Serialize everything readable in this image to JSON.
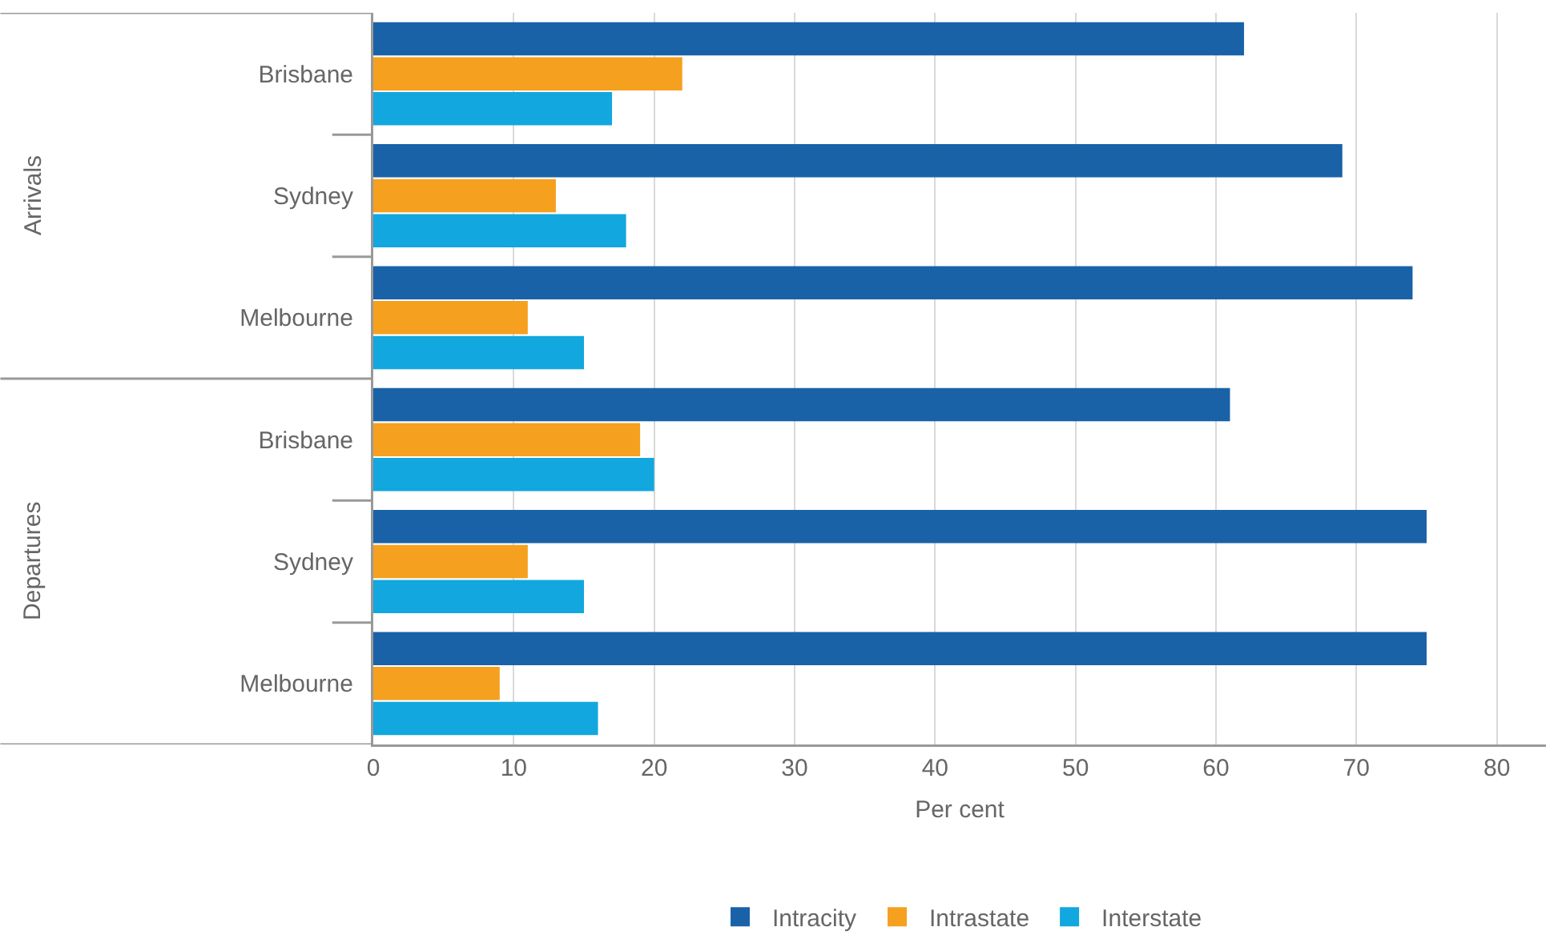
{
  "chart_data": {
    "type": "bar",
    "orientation": "horizontal",
    "xlabel": "Per cent",
    "categories": [
      "Brisbane",
      "Sydney",
      "Melbourne",
      "Brisbane",
      "Sydney",
      "Melbourne"
    ],
    "series": [
      {
        "name": "Intracity",
        "color": "#1a62a8",
        "values": [
          62,
          69,
          74,
          61,
          75,
          75
        ]
      },
      {
        "name": "Intrastate",
        "color": "#f5a01e",
        "values": [
          22,
          13,
          11,
          19,
          11,
          9
        ]
      },
      {
        "name": "Interstate",
        "color": "#12a7df",
        "values": [
          17,
          18,
          15,
          20,
          15,
          16
        ]
      }
    ],
    "xlim": [
      0,
      83.5
    ],
    "xticks": [
      0,
      10,
      20,
      30,
      40,
      50,
      60,
      70,
      80
    ],
    "annotations": [
      "Arrivals",
      "Departures"
    ],
    "grid": "x",
    "legend": "bottom"
  }
}
